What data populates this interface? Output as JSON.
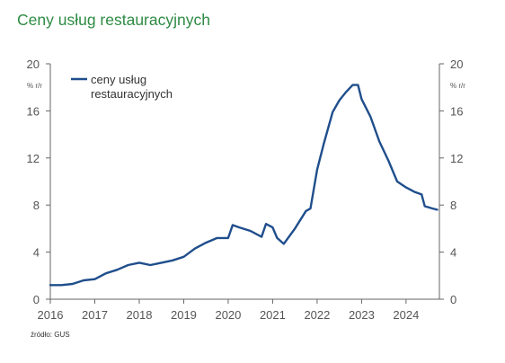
{
  "page": {
    "title": "Ceny usług restauracyjnych",
    "source": "źródło: GUS",
    "colors": {
      "title": "#2e8b44",
      "line": "#1f4e8c",
      "axis": "#666666"
    }
  },
  "chart_data": {
    "type": "line",
    "title": "Ceny usług restauracyjnych",
    "ylabel_left": "% r/r",
    "ylabel_right": "% r/r",
    "ylim": [
      0,
      20
    ],
    "yticks": [
      0,
      4,
      8,
      12,
      16,
      20
    ],
    "xlim": [
      2016.0,
      2024.75
    ],
    "xticks": [
      2016,
      2017,
      2018,
      2019,
      2020,
      2021,
      2022,
      2023,
      2024
    ],
    "grid": false,
    "legend_position": "top-left",
    "series": [
      {
        "name": "ceny usług restauracyjnych",
        "legend_lines": [
          "ceny usług",
          "restauracyjnych"
        ],
        "color": "#1f4e8c",
        "x": [
          2016.0,
          2016.25,
          2016.5,
          2016.75,
          2017.0,
          2017.25,
          2017.5,
          2017.75,
          2018.0,
          2018.25,
          2018.5,
          2018.75,
          2019.0,
          2019.25,
          2019.5,
          2019.75,
          2020.0,
          2020.1,
          2020.25,
          2020.5,
          2020.75,
          2020.85,
          2021.0,
          2021.1,
          2021.25,
          2021.5,
          2021.75,
          2021.85,
          2022.0,
          2022.15,
          2022.35,
          2022.5,
          2022.65,
          2022.8,
          2022.92,
          2023.0,
          2023.2,
          2023.4,
          2023.6,
          2023.8,
          2024.0,
          2024.2,
          2024.35,
          2024.42,
          2024.6,
          2024.7
        ],
        "y": [
          1.2,
          1.2,
          1.3,
          1.6,
          1.7,
          2.2,
          2.5,
          2.9,
          3.1,
          2.9,
          3.1,
          3.3,
          3.6,
          4.3,
          4.8,
          5.2,
          5.2,
          6.3,
          6.1,
          5.8,
          5.3,
          6.4,
          6.1,
          5.2,
          4.7,
          6.0,
          7.5,
          7.7,
          11.0,
          13.2,
          15.9,
          16.9,
          17.6,
          18.2,
          18.2,
          17.0,
          15.5,
          13.4,
          11.8,
          10.0,
          9.5,
          9.1,
          8.9,
          7.9,
          7.7,
          7.6
        ]
      }
    ]
  }
}
